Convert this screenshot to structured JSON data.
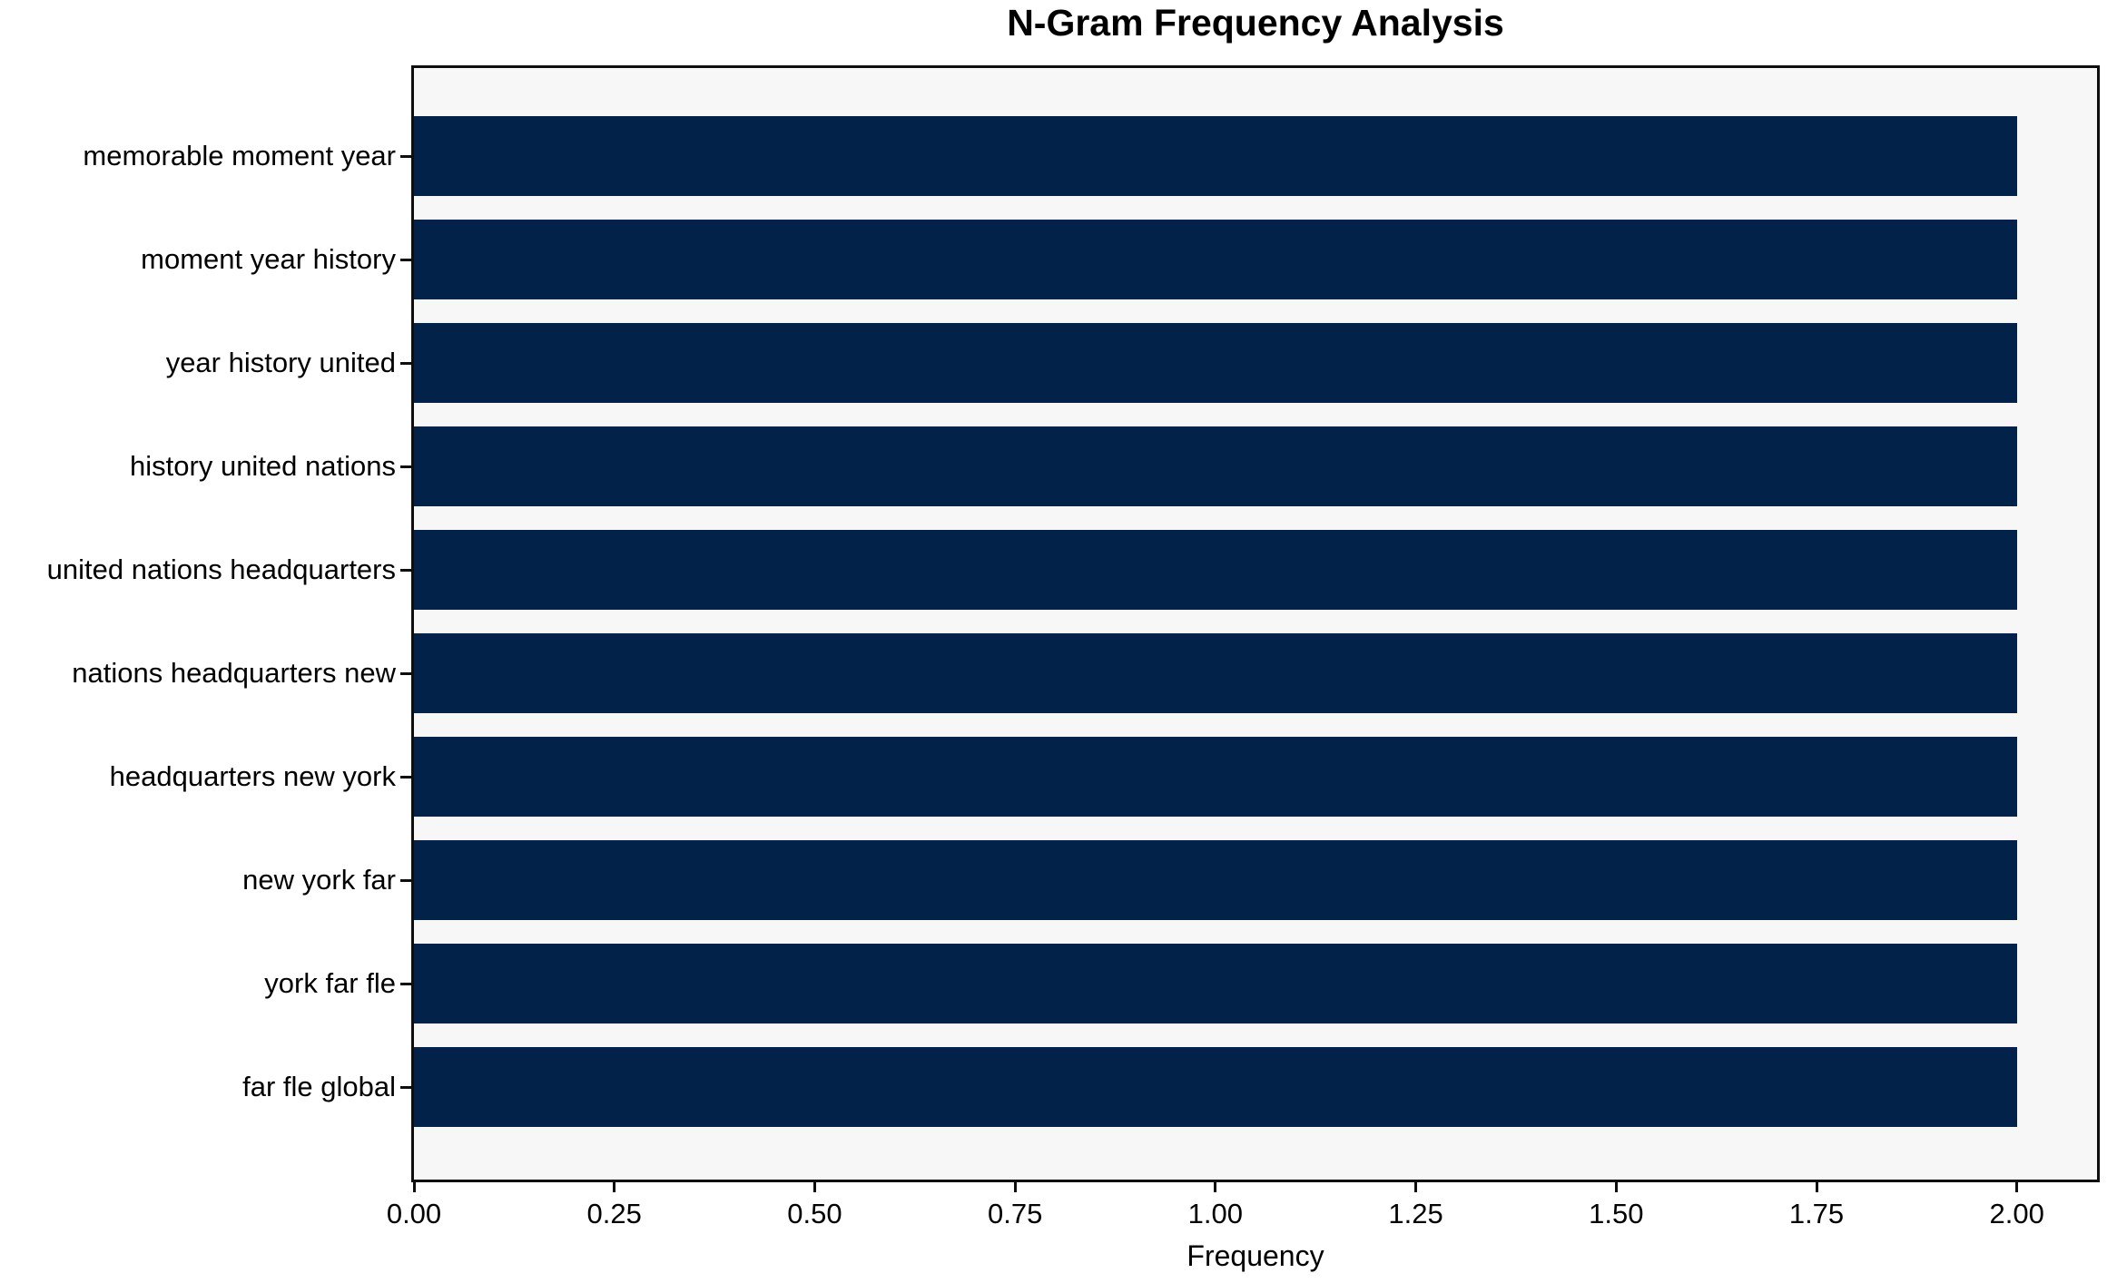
{
  "chart_data": {
    "type": "bar",
    "orientation": "horizontal",
    "title": "N-Gram Frequency Analysis",
    "xlabel": "Frequency",
    "ylabel": "",
    "categories": [
      "memorable moment year",
      "moment year history",
      "year history united",
      "history united nations",
      "united nations headquarters",
      "nations headquarters new",
      "headquarters new york",
      "new york far",
      "york far fle",
      "far fle global"
    ],
    "values": [
      2,
      2,
      2,
      2,
      2,
      2,
      2,
      2,
      2,
      2
    ],
    "xlim": [
      0,
      2.1
    ],
    "xticks": [
      {
        "value": 0.0,
        "label": "0.00"
      },
      {
        "value": 0.25,
        "label": "0.25"
      },
      {
        "value": 0.5,
        "label": "0.50"
      },
      {
        "value": 0.75,
        "label": "0.75"
      },
      {
        "value": 1.0,
        "label": "1.00"
      },
      {
        "value": 1.25,
        "label": "1.25"
      },
      {
        "value": 1.5,
        "label": "1.50"
      },
      {
        "value": 1.75,
        "label": "1.75"
      },
      {
        "value": 2.0,
        "label": "2.00"
      }
    ],
    "grid": false,
    "legend": null,
    "colors": {
      "bar": "#03224A",
      "plot_background": "#F7F7F7",
      "figure_background": "#FFFFFF",
      "spine": "#0E0E0E",
      "text": "#000000"
    }
  }
}
